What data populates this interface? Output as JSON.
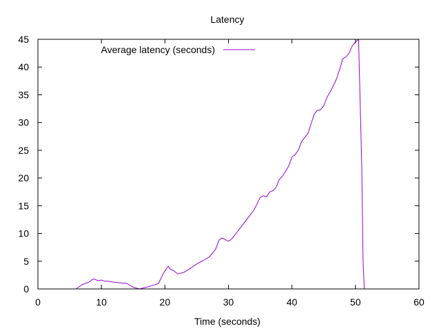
{
  "chart_data": {
    "type": "line",
    "title": "Latency",
    "xlabel": "Time (seconds)",
    "ylabel": "",
    "xlim": [
      0,
      60
    ],
    "ylim": [
      0,
      45
    ],
    "xticks": [
      0,
      10,
      20,
      30,
      40,
      50,
      60
    ],
    "yticks": [
      0,
      5,
      10,
      15,
      20,
      25,
      30,
      35,
      40,
      45
    ],
    "grid": false,
    "legend_position": "top-left",
    "series": [
      {
        "name": "Average latency (seconds)",
        "color": "#9400d3",
        "x": [
          2.6,
          4.0,
          6.0,
          7.0,
          8.0,
          8.7,
          9.5,
          10.0,
          10.5,
          11.0,
          12.0,
          13.0,
          14.0,
          15.0,
          16.0,
          17.0,
          18.0,
          19.0,
          19.8,
          20.5,
          20.8,
          21.5,
          22.0,
          23.0,
          24.0,
          25.0,
          26.0,
          27.0,
          28.0,
          28.5,
          29.0,
          29.5,
          30.0,
          30.5,
          31.0,
          32.0,
          33.0,
          34.0,
          35.0,
          35.5,
          36.0,
          36.5,
          37.0,
          37.5,
          38.0,
          38.5,
          39.0,
          39.5,
          40.0,
          40.5,
          41.0,
          41.5,
          42.0,
          42.5,
          43.0,
          43.5,
          44.0,
          44.5,
          45.0,
          45.5,
          46.0,
          46.5,
          47.0,
          47.5,
          48.0,
          48.5,
          49.0,
          49.5,
          50.0,
          50.5,
          51.0,
          51.2,
          51.4
        ],
        "y": [
          0,
          0,
          0,
          0.8,
          1.2,
          1.8,
          1.5,
          1.6,
          1.4,
          1.4,
          1.2,
          1.1,
          1.0,
          0.3,
          0.0,
          0.3,
          0.6,
          1.0,
          2.9,
          4.1,
          3.6,
          3.2,
          2.7,
          3.0,
          3.7,
          4.5,
          5.1,
          5.8,
          7.2,
          8.8,
          9.2,
          8.9,
          8.6,
          9.0,
          9.7,
          11.2,
          12.7,
          14.2,
          16.5,
          16.8,
          16.6,
          17.5,
          17.7,
          18.3,
          19.7,
          20.3,
          21.2,
          22.2,
          23.8,
          24.2,
          25.0,
          26.5,
          27.3,
          28.0,
          29.7,
          31.5,
          32.2,
          32.3,
          33.0,
          34.5,
          35.5,
          36.6,
          37.8,
          39.5,
          41.5,
          41.8,
          42.5,
          43.8,
          44.5,
          45.0,
          22.0,
          5.0,
          0.0
        ]
      }
    ]
  }
}
